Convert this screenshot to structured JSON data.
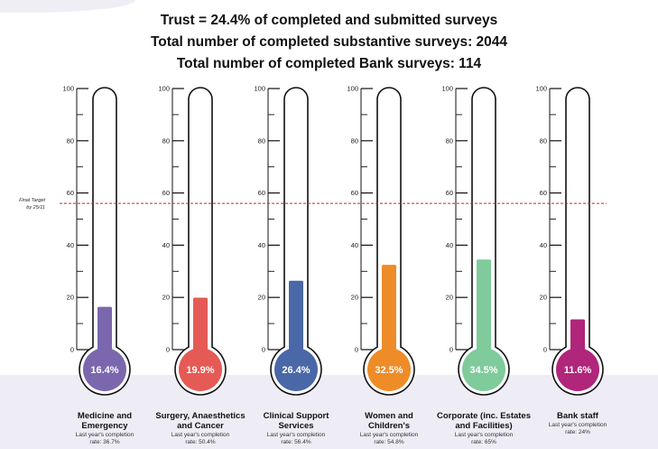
{
  "header": {
    "line1": "Trust = 24.4% of completed and submitted surveys",
    "line2": "Total number of completed substantive surveys: 2044",
    "line3": "Total number of completed Bank surveys: 114"
  },
  "chart_data": {
    "type": "bar",
    "style": "thermometer",
    "ylim": [
      0,
      100
    ],
    "yticks": [
      0,
      20,
      40,
      60,
      80,
      100
    ],
    "target": {
      "label_line1": "Final Target",
      "label_line2": "by 25/11",
      "value": 56
    },
    "categories": [
      {
        "name": "Medicine and Emergency",
        "label_line1": "Medicine and",
        "label_line2": "Emergency",
        "value": 16.4,
        "value_label": "16.4%",
        "color": "#7b67ad",
        "last_year_line1": "Last year's completion",
        "last_year_line2": "rate: 36.7%"
      },
      {
        "name": "Surgery, Anaesthetics and Cancer",
        "label_line1": "Surgery, Anaesthetics",
        "label_line2": "and Cancer",
        "value": 19.9,
        "value_label": "19.9%",
        "color": "#e55a55",
        "last_year_line1": "Last year's completion",
        "last_year_line2": "rate: 50.4%"
      },
      {
        "name": "Clinical Support Services",
        "label_line1": "Clinical Support",
        "label_line2": "Services",
        "value": 26.4,
        "value_label": "26.4%",
        "color": "#4a68a8",
        "last_year_line1": "Last year's completion",
        "last_year_line2": "rate: 56.4%"
      },
      {
        "name": "Women and Children's",
        "label_line1": "Women and",
        "label_line2": "Children's",
        "value": 32.5,
        "value_label": "32.5%",
        "color": "#ee8c28",
        "last_year_line1": "Last year's completion",
        "last_year_line2": "rate: 54.8%"
      },
      {
        "name": "Corporate (inc. Estates and Facilities)",
        "label_line1": "Corporate (inc. Estates",
        "label_line2": "and Facilities)",
        "value": 34.5,
        "value_label": "34.5%",
        "color": "#7fcb9b",
        "last_year_line1": "Last year's completion",
        "last_year_line2": "rate: 65%"
      },
      {
        "name": "Bank staff",
        "label_line1": "Bank staff",
        "label_line2": "",
        "value": 11.6,
        "value_label": "11.6%",
        "color": "#b0267a",
        "last_year_line1": "Last year's completion",
        "last_year_line2": "rate: 24%"
      }
    ]
  }
}
